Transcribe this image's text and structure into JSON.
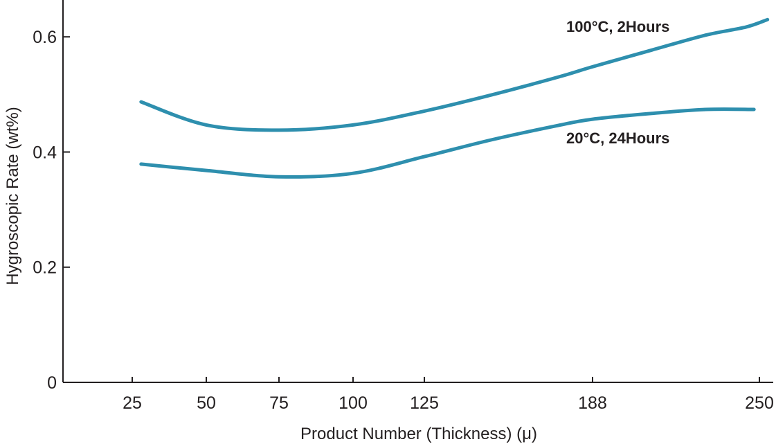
{
  "chart_data": {
    "type": "line",
    "xlabel": "Product Number (Thickness) (μ)",
    "ylabel": "Hygroscopic Rate (wt%)",
    "categories": [
      "25",
      "50",
      "75",
      "100",
      "125",
      "188",
      "250"
    ],
    "ylim": [
      0,
      0.65
    ],
    "yticks": [
      "0",
      "0.2",
      "0.4",
      "0.6"
    ],
    "grid": false,
    "line_color": "#2e8fae",
    "series": [
      {
        "name": "100°C, 2Hours",
        "x": [
          28,
          50,
          75,
          100,
          125,
          150,
          175,
          188,
          210,
          230,
          245,
          253
        ],
        "y": [
          0.487,
          0.447,
          0.438,
          0.447,
          0.471,
          0.499,
          0.53,
          0.548,
          0.577,
          0.603,
          0.617,
          0.63
        ]
      },
      {
        "name": "20°C, 24Hours",
        "x": [
          28,
          50,
          75,
          100,
          125,
          150,
          175,
          188,
          210,
          230,
          248
        ],
        "y": [
          0.379,
          0.368,
          0.357,
          0.363,
          0.392,
          0.421,
          0.446,
          0.457,
          0.467,
          0.474,
          0.474
        ]
      }
    ]
  }
}
